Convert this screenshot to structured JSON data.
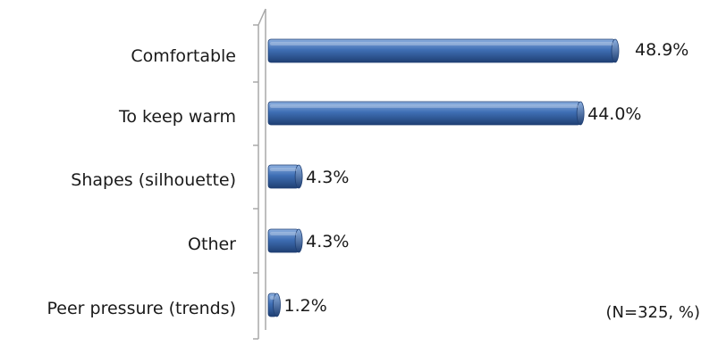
{
  "chart_data": {
    "type": "bar",
    "orientation": "horizontal",
    "categories": [
      "Comfortable",
      "To keep warm",
      "Shapes (silhouette)",
      "Other",
      "Peer pressure (trends)"
    ],
    "values": [
      48.9,
      44.0,
      4.3,
      4.3,
      1.2
    ],
    "value_labels": [
      "48.9%",
      "44.0%",
      "4.3%",
      "4.3%",
      "1.2%"
    ],
    "note": "(N=325,  %)",
    "xlim": [
      0,
      52
    ],
    "grid": false,
    "legend": "none",
    "colors": {
      "bar_main": "#3F6FB5",
      "bar_light": "#8DB0E0",
      "bar_dark": "#1F3F73",
      "axis": "#a8a8a8"
    }
  }
}
